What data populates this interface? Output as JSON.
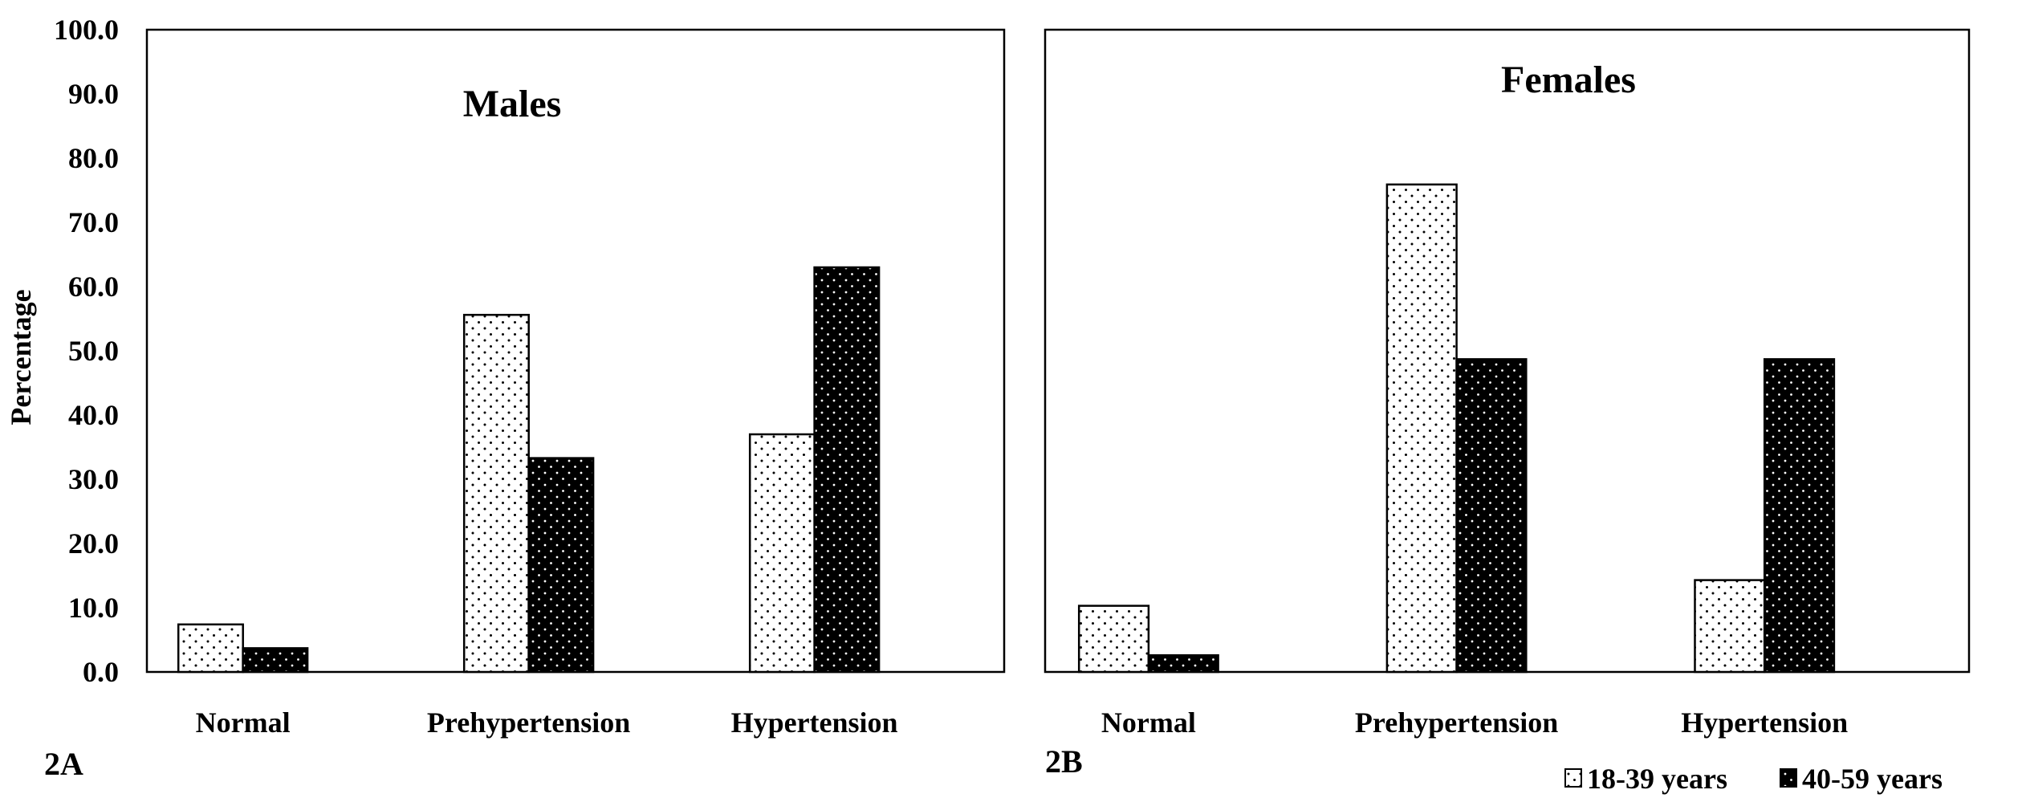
{
  "chart_data": [
    {
      "type": "bar",
      "panel_label": "2A",
      "title": "Males",
      "ylabel": "Percentage",
      "ylim": [
        0,
        100
      ],
      "yticks": [
        "0.0",
        "10.0",
        "20.0",
        "30.0",
        "40.0",
        "50.0",
        "60.0",
        "70.0",
        "80.0",
        "90.0",
        "100.0"
      ],
      "categories": [
        "Normal",
        "Prehypertension",
        "Hypertension"
      ],
      "series": [
        {
          "name": "18-39 years",
          "values": [
            7.4,
            55.6,
            37.0
          ]
        },
        {
          "name": "40-59 years",
          "values": [
            3.7,
            33.3,
            63.0
          ]
        }
      ],
      "grid": false
    },
    {
      "type": "bar",
      "panel_label": "2B",
      "title": "Females",
      "ylim": [
        0,
        100
      ],
      "categories": [
        "Normal",
        "Prehypertension",
        "Hypertension"
      ],
      "series": [
        {
          "name": "18-39 years",
          "values": [
            10.3,
            75.9,
            14.3
          ]
        },
        {
          "name": "40-59 years",
          "values": [
            2.6,
            48.7,
            48.7
          ]
        }
      ],
      "grid": false
    }
  ],
  "legend": {
    "placement": "bottom-right",
    "items": [
      {
        "label": "18-39 years",
        "style": "dotted-white"
      },
      {
        "label": "40-59 years",
        "style": "dotted-black"
      }
    ]
  },
  "colors": {
    "series_1_fill": "#ffffff",
    "series_2_fill": "#000000",
    "axis": "#000000"
  }
}
